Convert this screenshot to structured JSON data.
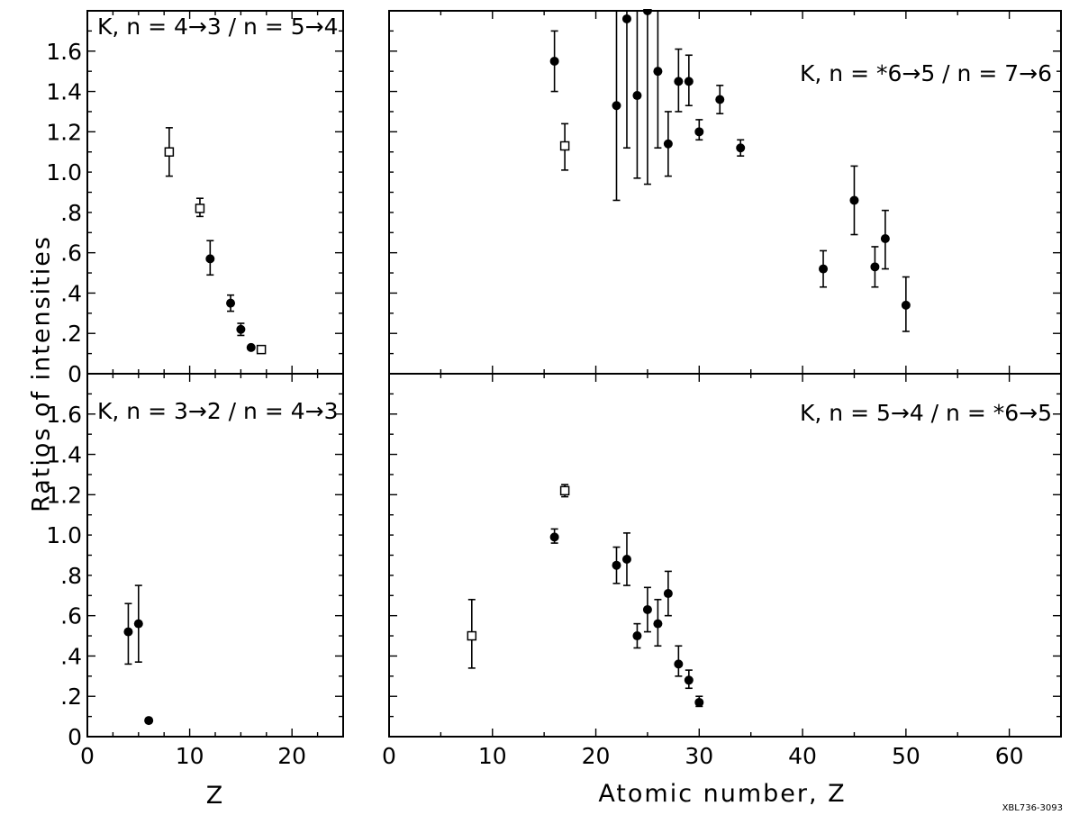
{
  "figure": {
    "ylabel": "Ratios of intensities",
    "stamp": "XBL736-3093"
  },
  "chart_data": [
    {
      "id": "top-left",
      "type": "scatter",
      "title": "K, n = 4→3 / n = 5→4",
      "xlabel": "",
      "ylabel": "Ratios of intensities",
      "xlim": [
        0,
        25
      ],
      "ylim": [
        0,
        1.8
      ],
      "xticks": [],
      "yticks": [
        0,
        0.2,
        0.4,
        0.6,
        0.8,
        1.0,
        1.2,
        1.4,
        1.6
      ],
      "ytick_labels": [
        "0",
        ".2",
        ".4",
        ".6",
        ".8",
        "1.0",
        "1.2",
        "1.4",
        "1.6"
      ],
      "series": [
        {
          "marker": "filled-circle",
          "points": [
            {
              "x": 12,
              "y": 0.57,
              "lo": 0.49,
              "hi": 0.66
            },
            {
              "x": 14,
              "y": 0.35,
              "lo": 0.31,
              "hi": 0.39
            },
            {
              "x": 15,
              "y": 0.22,
              "lo": 0.19,
              "hi": 0.25
            },
            {
              "x": 16,
              "y": 0.13,
              "lo": 0.13,
              "hi": 0.13
            }
          ]
        },
        {
          "marker": "open-square",
          "points": [
            {
              "x": 8,
              "y": 1.1,
              "lo": 0.98,
              "hi": 1.22
            },
            {
              "x": 11,
              "y": 0.82,
              "lo": 0.78,
              "hi": 0.87
            },
            {
              "x": 17,
              "y": 0.12,
              "lo": 0.12,
              "hi": 0.12
            }
          ]
        }
      ]
    },
    {
      "id": "top-right",
      "type": "scatter",
      "title": "K, n = *6→5 / n = 7→6",
      "xlabel": "",
      "ylabel": "",
      "xlim": [
        0,
        65
      ],
      "ylim": [
        0,
        1.8
      ],
      "xticks": [],
      "yticks": [],
      "series": [
        {
          "marker": "filled-circle",
          "points": [
            {
              "x": 16,
              "y": 1.55,
              "lo": 1.4,
              "hi": 1.7
            },
            {
              "x": 22,
              "y": 1.33,
              "lo": 0.86,
              "hi": 1.8
            },
            {
              "x": 23,
              "y": 1.76,
              "lo": 1.12,
              "hi": 1.8
            },
            {
              "x": 24,
              "y": 1.38,
              "lo": 0.97,
              "hi": 1.8
            },
            {
              "x": 25,
              "y": 1.8,
              "lo": 0.94,
              "hi": 1.8
            },
            {
              "x": 26,
              "y": 1.5,
              "lo": 1.12,
              "hi": 1.8
            },
            {
              "x": 27,
              "y": 1.14,
              "lo": 0.98,
              "hi": 1.3
            },
            {
              "x": 28,
              "y": 1.45,
              "lo": 1.3,
              "hi": 1.61
            },
            {
              "x": 29,
              "y": 1.45,
              "lo": 1.33,
              "hi": 1.58
            },
            {
              "x": 30,
              "y": 1.2,
              "lo": 1.16,
              "hi": 1.26
            },
            {
              "x": 32,
              "y": 1.36,
              "lo": 1.29,
              "hi": 1.43
            },
            {
              "x": 34,
              "y": 1.12,
              "lo": 1.08,
              "hi": 1.16
            },
            {
              "x": 42,
              "y": 0.52,
              "lo": 0.43,
              "hi": 0.61
            },
            {
              "x": 45,
              "y": 0.86,
              "lo": 0.69,
              "hi": 1.03
            },
            {
              "x": 47,
              "y": 0.53,
              "lo": 0.43,
              "hi": 0.63
            },
            {
              "x": 48,
              "y": 0.67,
              "lo": 0.52,
              "hi": 0.81
            },
            {
              "x": 50,
              "y": 0.34,
              "lo": 0.21,
              "hi": 0.48
            }
          ]
        },
        {
          "marker": "open-square",
          "points": [
            {
              "x": 17,
              "y": 1.13,
              "lo": 1.01,
              "hi": 1.24
            }
          ]
        }
      ]
    },
    {
      "id": "bottom-left",
      "type": "scatter",
      "title": "K, n = 3→2 / n = 4→3",
      "xlabel": "Z",
      "ylabel": "",
      "xlim": [
        0,
        25
      ],
      "ylim": [
        0,
        1.8
      ],
      "xticks": [
        0,
        10,
        20
      ],
      "xtick_labels": [
        "0",
        "10",
        "20"
      ],
      "yticks": [
        0,
        0.2,
        0.4,
        0.6,
        0.8,
        1.0,
        1.2,
        1.4,
        1.6
      ],
      "ytick_labels": [
        "0",
        ".2",
        ".4",
        ".6",
        ".8",
        "1.0",
        "1.2",
        "1.4",
        "1.6"
      ],
      "series": [
        {
          "marker": "filled-circle",
          "points": [
            {
              "x": 4,
              "y": 0.52,
              "lo": 0.36,
              "hi": 0.66
            },
            {
              "x": 5,
              "y": 0.56,
              "lo": 0.37,
              "hi": 0.75
            },
            {
              "x": 6,
              "y": 0.08,
              "lo": 0.08,
              "hi": 0.08
            }
          ]
        }
      ]
    },
    {
      "id": "bottom-right",
      "type": "scatter",
      "title": "K, n = 5→4 / n = *6→5",
      "xlabel": "Atomic number, Z",
      "ylabel": "",
      "xlim": [
        0,
        65
      ],
      "ylim": [
        0,
        1.8
      ],
      "xticks": [
        0,
        10,
        20,
        30,
        40,
        50,
        60
      ],
      "xtick_labels": [
        "0",
        "10",
        "20",
        "30",
        "40",
        "50",
        "60"
      ],
      "yticks": [],
      "series": [
        {
          "marker": "filled-circle",
          "points": [
            {
              "x": 16,
              "y": 0.99,
              "lo": 0.96,
              "hi": 1.03
            },
            {
              "x": 22,
              "y": 0.85,
              "lo": 0.76,
              "hi": 0.94
            },
            {
              "x": 23,
              "y": 0.88,
              "lo": 0.75,
              "hi": 1.01
            },
            {
              "x": 24,
              "y": 0.5,
              "lo": 0.44,
              "hi": 0.56
            },
            {
              "x": 25,
              "y": 0.63,
              "lo": 0.52,
              "hi": 0.74
            },
            {
              "x": 26,
              "y": 0.56,
              "lo": 0.45,
              "hi": 0.68
            },
            {
              "x": 27,
              "y": 0.71,
              "lo": 0.6,
              "hi": 0.82
            },
            {
              "x": 28,
              "y": 0.36,
              "lo": 0.3,
              "hi": 0.45
            },
            {
              "x": 29,
              "y": 0.28,
              "lo": 0.24,
              "hi": 0.33
            },
            {
              "x": 30,
              "y": 0.17,
              "lo": 0.15,
              "hi": 0.2
            }
          ]
        },
        {
          "marker": "open-square",
          "points": [
            {
              "x": 8,
              "y": 0.5,
              "lo": 0.34,
              "hi": 0.68
            },
            {
              "x": 17,
              "y": 1.22,
              "lo": 1.19,
              "hi": 1.25
            }
          ]
        }
      ]
    }
  ]
}
